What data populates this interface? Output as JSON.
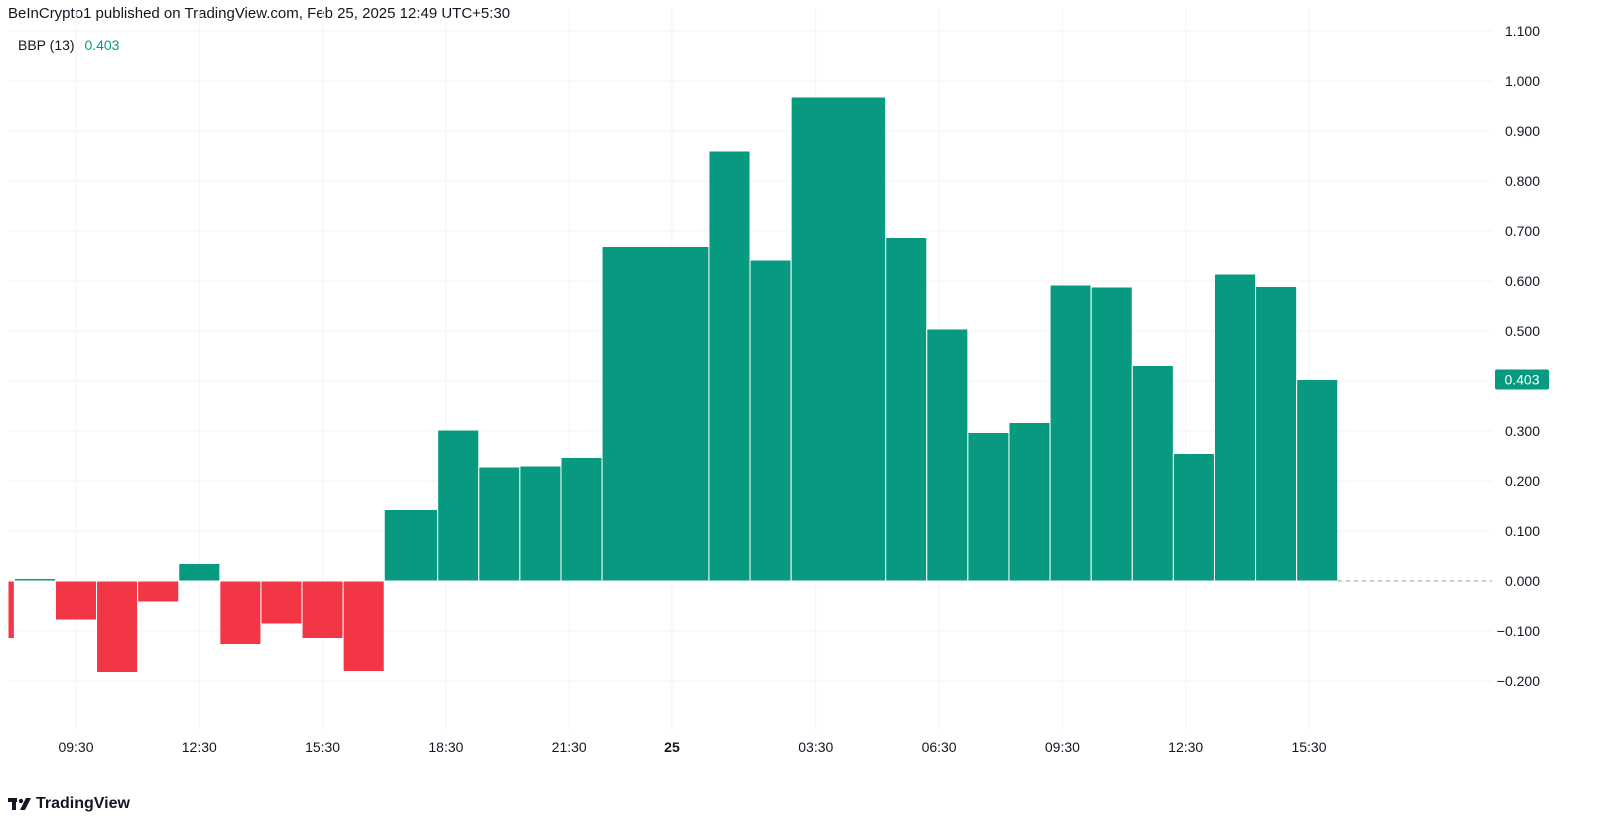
{
  "header": {
    "publisher_text": "BeInCrypto1 published on TradingView.com, Feb 25, 2025 12:49 UTC+5:30"
  },
  "legend": {
    "indicator_name": "BBP (13)",
    "indicator_value": "0.403"
  },
  "footer": {
    "brand": "TradingView"
  },
  "colors": {
    "positive": "#089981",
    "negative": "#f23645",
    "grid": "#f0f3fa",
    "text": "#131722",
    "zero_line": "#9598a1"
  },
  "chart_data": {
    "type": "bar",
    "title": "BBP (13)",
    "last_value_label": "0.403",
    "ylim": [
      -0.3,
      1.1
    ],
    "y_ticks": [
      "1.100",
      "1.000",
      "0.900",
      "0.800",
      "0.700",
      "0.600",
      "0.500",
      "0.400",
      "0.300",
      "0.200",
      "0.100",
      "0.000",
      "−0.100",
      "−0.200"
    ],
    "y_tick_values": [
      1.1,
      1.0,
      0.9,
      0.8,
      0.7,
      0.6,
      0.5,
      0.4,
      0.3,
      0.2,
      0.1,
      0.0,
      -0.1,
      -0.2
    ],
    "x_ticks": [
      "09:30",
      "12:30",
      "15:30",
      "18:30",
      "21:30",
      "25",
      "03:30",
      "06:30",
      "09:30",
      "12:30",
      "15:30"
    ],
    "x_tick_bold": [
      false,
      false,
      false,
      false,
      false,
      true,
      false,
      false,
      false,
      false,
      false
    ],
    "x_tick_hours": [
      9.5,
      12.5,
      15.5,
      18.5,
      21.5,
      24,
      27.5,
      30.5,
      33.5,
      36.5,
      39.5
    ],
    "x_unit": "hours from Feb 24 00:00",
    "bars": [
      {
        "start": 7.4,
        "end": 8.0,
        "value": -0.115
      },
      {
        "start": 8.0,
        "end": 9.0,
        "value": 0.005
      },
      {
        "start": 9.0,
        "end": 10.0,
        "value": -0.078
      },
      {
        "start": 10.0,
        "end": 11.0,
        "value": -0.183
      },
      {
        "start": 11.0,
        "end": 12.0,
        "value": -0.042
      },
      {
        "start": 12.0,
        "end": 13.0,
        "value": 0.035
      },
      {
        "start": 13.0,
        "end": 14.0,
        "value": -0.127
      },
      {
        "start": 14.0,
        "end": 15.0,
        "value": -0.086
      },
      {
        "start": 15.0,
        "end": 16.0,
        "value": -0.115
      },
      {
        "start": 16.0,
        "end": 17.0,
        "value": -0.181
      },
      {
        "start": 17.0,
        "end": 18.3,
        "value": 0.143
      },
      {
        "start": 18.3,
        "end": 19.3,
        "value": 0.302
      },
      {
        "start": 19.3,
        "end": 20.3,
        "value": 0.228
      },
      {
        "start": 20.3,
        "end": 21.3,
        "value": 0.23
      },
      {
        "start": 21.3,
        "end": 22.3,
        "value": 0.247
      },
      {
        "start": 22.3,
        "end": 24.9,
        "value": 0.669
      },
      {
        "start": 24.9,
        "end": 25.9,
        "value": 0.86
      },
      {
        "start": 25.9,
        "end": 26.9,
        "value": 0.642
      },
      {
        "start": 26.9,
        "end": 29.2,
        "value": 0.968
      },
      {
        "start": 29.2,
        "end": 30.2,
        "value": 0.687
      },
      {
        "start": 30.2,
        "end": 31.2,
        "value": 0.504
      },
      {
        "start": 31.2,
        "end": 32.2,
        "value": 0.297
      },
      {
        "start": 32.2,
        "end": 33.2,
        "value": 0.317
      },
      {
        "start": 33.2,
        "end": 34.2,
        "value": 0.592
      },
      {
        "start": 34.2,
        "end": 35.2,
        "value": 0.588
      },
      {
        "start": 35.2,
        "end": 36.2,
        "value": 0.431
      },
      {
        "start": 36.2,
        "end": 37.2,
        "value": 0.255
      },
      {
        "start": 37.2,
        "end": 38.2,
        "value": 0.614
      },
      {
        "start": 38.2,
        "end": 39.2,
        "value": 0.589
      },
      {
        "start": 39.2,
        "end": 40.2,
        "value": 0.403
      }
    ]
  }
}
